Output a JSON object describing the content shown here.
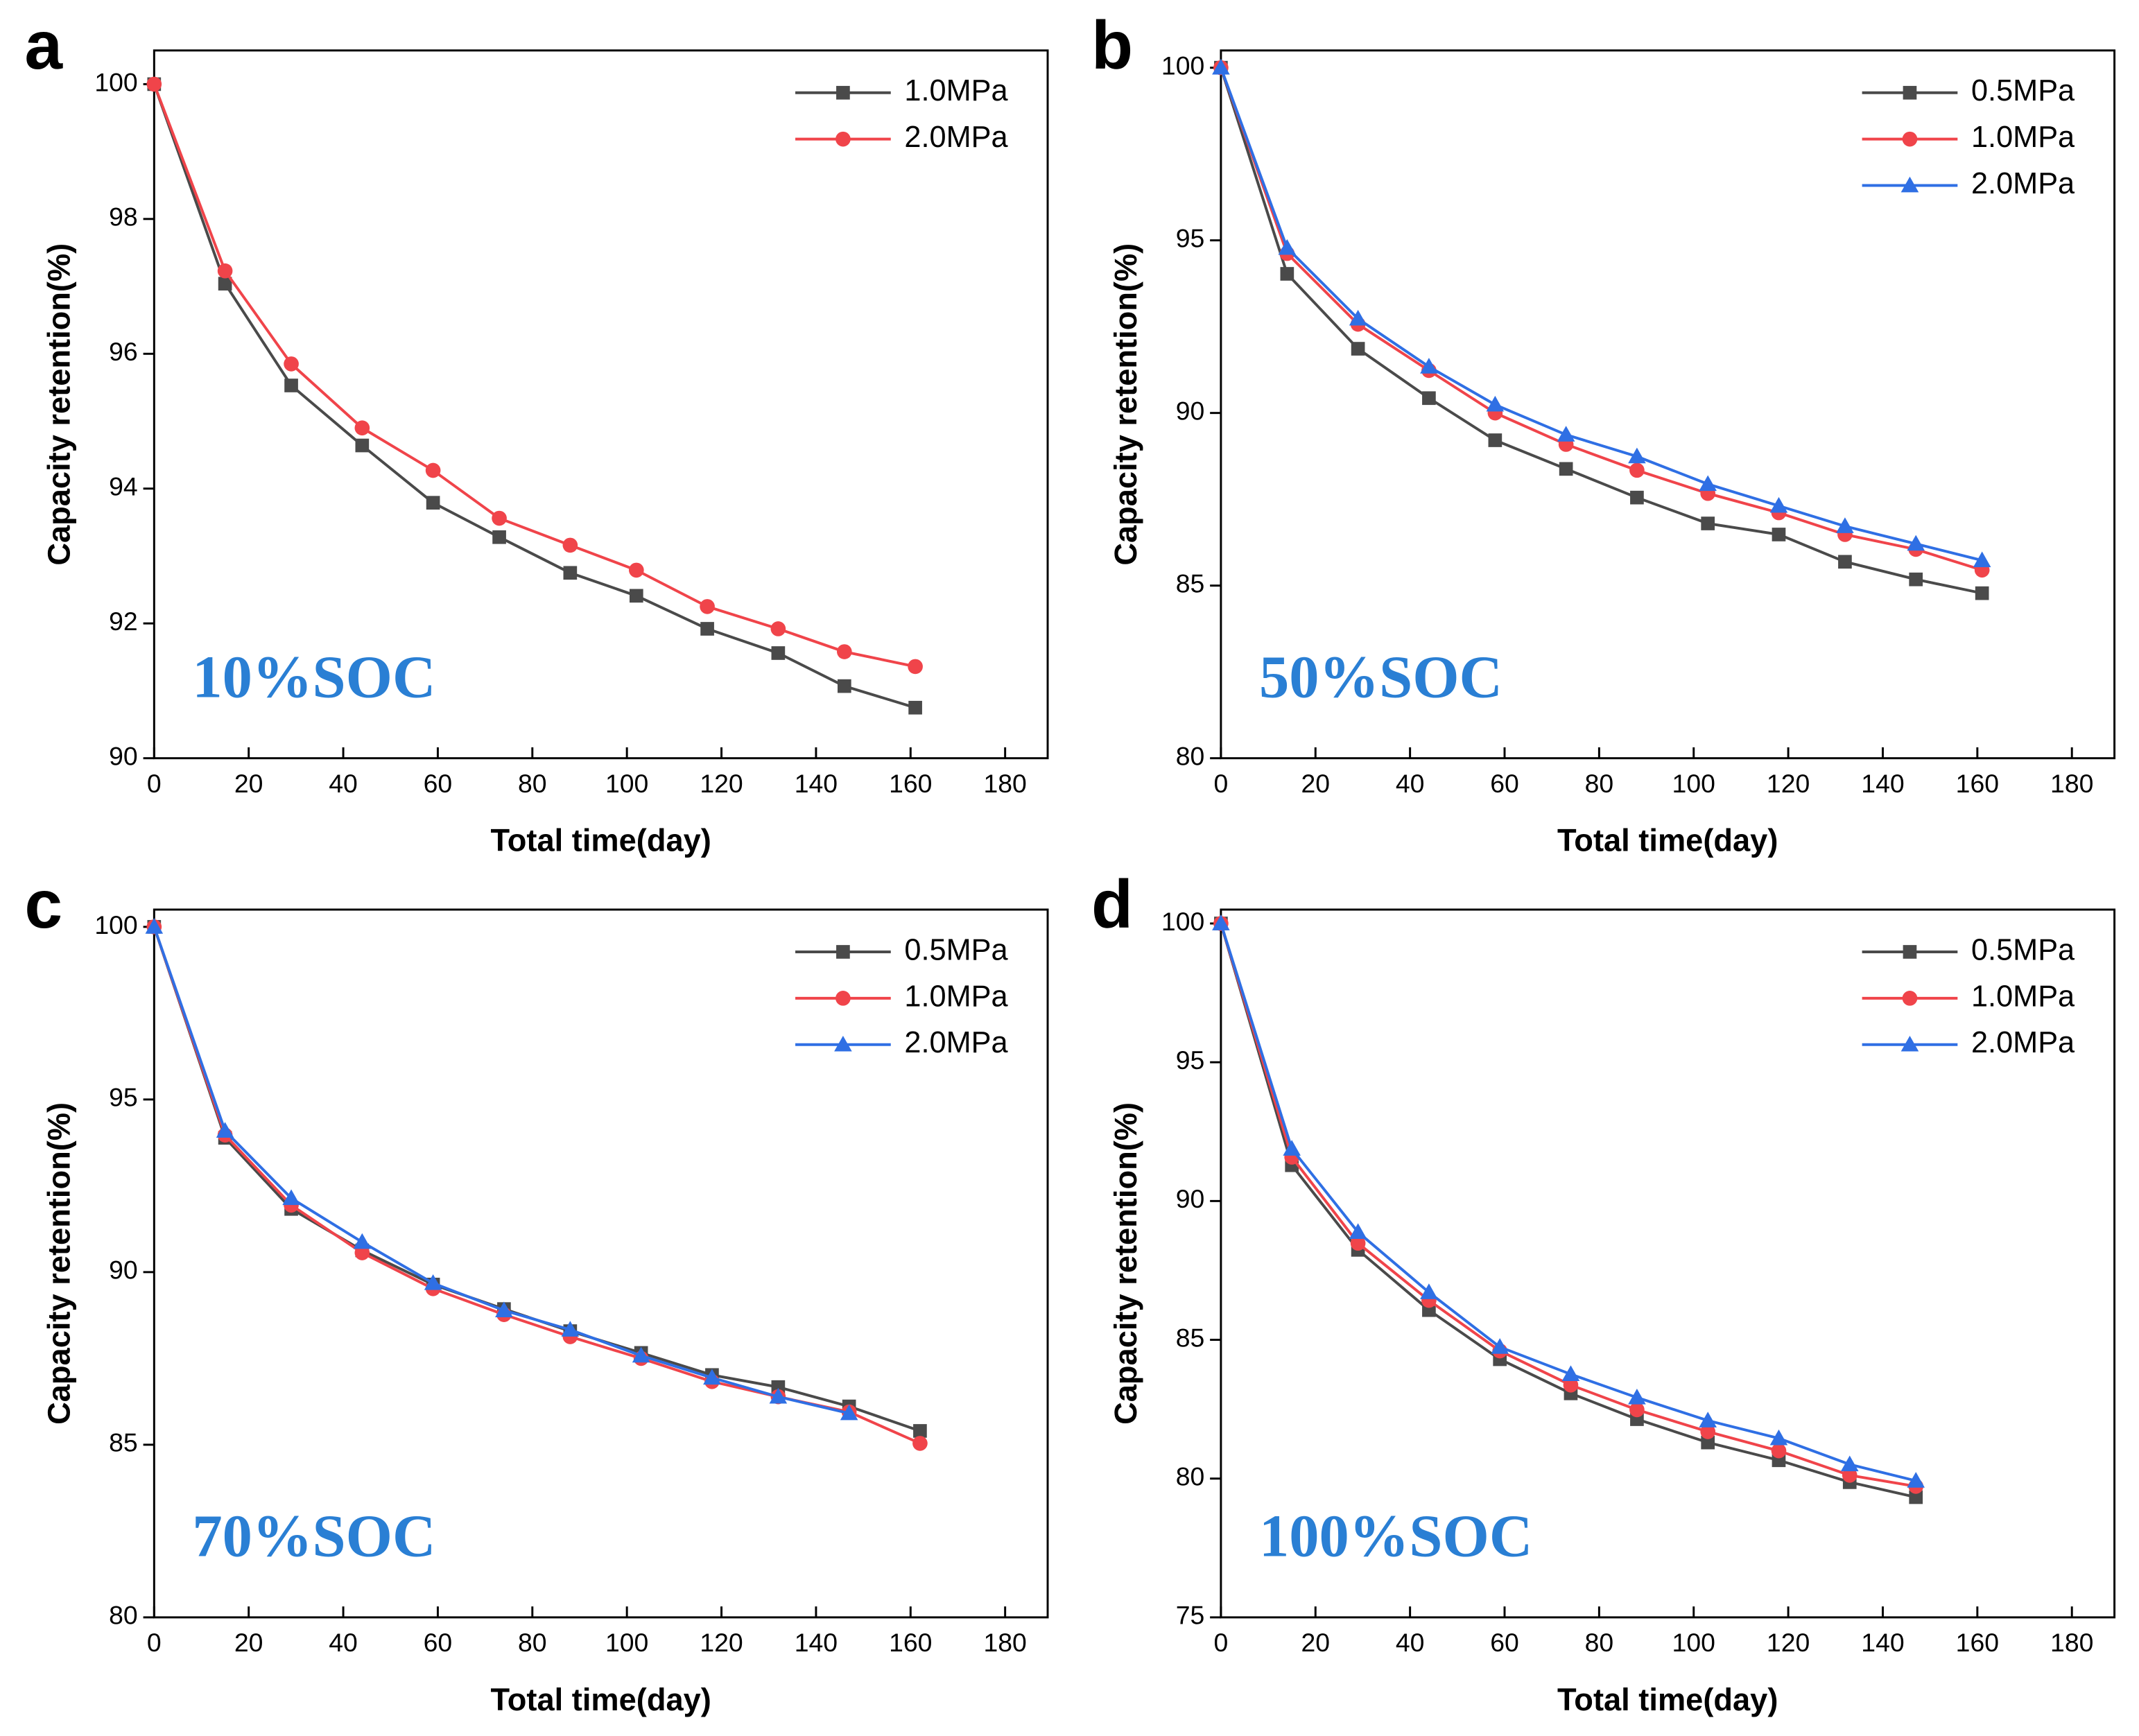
{
  "chart_data": [
    {
      "type": "line",
      "panel": "a",
      "annotation": "10%SOC",
      "x_label": "Total time(day)",
      "y_label": "Capacity retention(%)",
      "x": [
        0,
        15,
        29,
        44,
        59,
        73,
        88,
        102,
        117,
        132,
        146,
        161
      ],
      "series": [
        {
          "name": "1.0MPa",
          "color": "#4a4a4a",
          "marker": "square",
          "values": [
            100,
            97.04,
            95.53,
            94.64,
            93.79,
            93.28,
            92.75,
            92.41,
            91.92,
            91.56,
            91.07,
            90.75
          ]
        },
        {
          "name": "2.0MPa",
          "color": "#f0444a",
          "marker": "circle",
          "values": [
            100,
            97.23,
            95.85,
            94.9,
            94.27,
            93.56,
            93.16,
            92.79,
            92.25,
            91.92,
            91.58,
            91.36
          ]
        }
      ],
      "xlim": [
        0,
        189
      ],
      "ylim": [
        90,
        100.5
      ],
      "xticks": [
        0,
        20,
        40,
        60,
        80,
        100,
        120,
        140,
        160,
        180
      ],
      "yticks": [
        90,
        92,
        94,
        96,
        98,
        100
      ]
    },
    {
      "type": "line",
      "panel": "b",
      "annotation": "50%SOC",
      "x_label": "Total time(day)",
      "y_label": "Capacity retention(%)",
      "x": [
        0,
        14,
        29,
        44,
        58,
        73,
        88,
        103,
        118,
        132,
        147,
        161
      ],
      "series": [
        {
          "name": "0.5MPa",
          "color": "#4a4a4a",
          "marker": "square",
          "values": [
            100,
            94.03,
            91.86,
            90.43,
            89.21,
            88.38,
            87.55,
            86.8,
            86.48,
            85.69,
            85.18,
            84.78
          ]
        },
        {
          "name": "1.0MPa",
          "color": "#f0444a",
          "marker": "circle",
          "values": [
            100,
            94.62,
            92.57,
            91.23,
            90.0,
            89.09,
            88.34,
            87.67,
            87.11,
            86.48,
            86.05,
            85.45
          ]
        },
        {
          "name": "2.0MPa",
          "color": "#2f6fe4",
          "marker": "triangle",
          "values": [
            100,
            94.78,
            92.73,
            91.34,
            90.24,
            89.37,
            88.74,
            87.94,
            87.31,
            86.72,
            86.21,
            85.73
          ]
        }
      ],
      "xlim": [
        0,
        189
      ],
      "ylim": [
        80,
        100.5
      ],
      "xticks": [
        0,
        20,
        40,
        60,
        80,
        100,
        120,
        140,
        160,
        180
      ],
      "yticks": [
        80,
        85,
        90,
        95,
        100
      ]
    },
    {
      "type": "line",
      "panel": "c",
      "annotation": "70%SOC",
      "x_label": "Total time(day)",
      "y_label": "Capacity retention(%)",
      "x": [
        0,
        15,
        29,
        44,
        59,
        74,
        88,
        103,
        118,
        132,
        147,
        162
      ],
      "series": [
        {
          "name": "0.5MPa",
          "color": "#4a4a4a",
          "marker": "square",
          "values": [
            100,
            93.89,
            91.83,
            90.63,
            89.64,
            88.93,
            88.29,
            87.66,
            87.02,
            86.67,
            86.11,
            85.4
          ]
        },
        {
          "name": "1.0MPa",
          "color": "#f0444a",
          "marker": "circle",
          "values": [
            100,
            93.97,
            91.94,
            90.56,
            89.52,
            88.77,
            88.13,
            87.5,
            86.83,
            86.39,
            85.95,
            85.04
          ]
        },
        {
          "name": "2.0MPa",
          "color": "#2f6fe4",
          "marker": "triangle",
          "values": [
            100,
            94.09,
            92.14,
            90.87,
            89.68,
            88.89,
            88.33,
            87.58,
            86.94,
            86.39,
            85.91,
            null
          ]
        }
      ],
      "xlim": [
        0,
        189
      ],
      "ylim": [
        80,
        100.5
      ],
      "xticks": [
        0,
        20,
        40,
        60,
        80,
        100,
        120,
        140,
        160,
        180
      ],
      "yticks": [
        80,
        85,
        90,
        95,
        100
      ]
    },
    {
      "type": "line",
      "panel": "d",
      "annotation": "100%SOC",
      "x_label": "Total time(day)",
      "y_label": "Capacity retention(%)",
      "x": [
        0,
        15,
        29,
        44,
        59,
        74,
        88,
        103,
        118,
        133,
        147
      ],
      "series": [
        {
          "name": "0.5MPa",
          "color": "#4a4a4a",
          "marker": "square",
          "values": [
            100,
            91.29,
            88.24,
            86.07,
            84.3,
            83.07,
            82.14,
            81.3,
            80.66,
            79.87,
            79.33
          ]
        },
        {
          "name": "1.0MPa",
          "color": "#f0444a",
          "marker": "circle",
          "values": [
            100,
            91.58,
            88.48,
            86.42,
            84.6,
            83.37,
            82.48,
            81.69,
            81.0,
            80.12,
            79.72
          ]
        },
        {
          "name": "2.0MPa",
          "color": "#2f6fe4",
          "marker": "triangle",
          "values": [
            100,
            91.88,
            88.88,
            86.71,
            84.74,
            83.76,
            82.92,
            82.09,
            81.45,
            80.51,
            79.92
          ]
        }
      ],
      "xlim": [
        0,
        189
      ],
      "ylim": [
        75,
        100.5
      ],
      "xticks": [
        0,
        20,
        40,
        60,
        80,
        100,
        120,
        140,
        160,
        180
      ],
      "yticks": [
        75,
        80,
        85,
        90,
        95,
        100
      ]
    }
  ]
}
